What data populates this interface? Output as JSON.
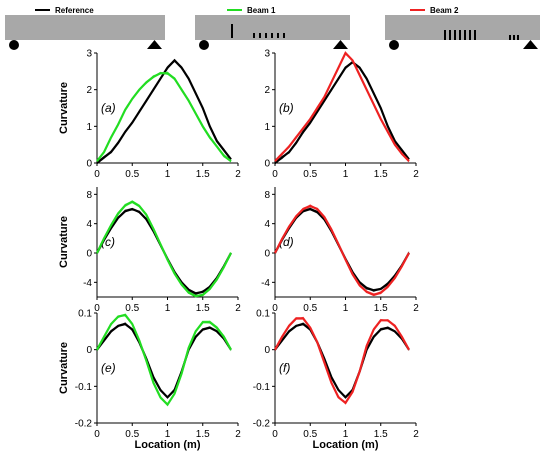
{
  "chart_data": [
    {
      "type": "line",
      "panel_label": "(a)",
      "ylabel": "Curvature",
      "xlabel": "",
      "xlim": [
        0,
        2
      ],
      "ylim": [
        0,
        3
      ],
      "xticks": [
        "0",
        "0.5",
        "1",
        "1.5",
        "2"
      ],
      "yticks": [
        "0",
        "1",
        "2",
        "3"
      ],
      "x": [
        0,
        0.1,
        0.2,
        0.3,
        0.4,
        0.5,
        0.6,
        0.7,
        0.8,
        0.9,
        1.0,
        1.1,
        1.2,
        1.3,
        1.4,
        1.5,
        1.6,
        1.7,
        1.8,
        1.9
      ],
      "series": [
        {
          "name": "Reference",
          "color": "#000000",
          "values": [
            0.0,
            0.15,
            0.3,
            0.55,
            0.85,
            1.1,
            1.4,
            1.7,
            2.0,
            2.3,
            2.6,
            2.8,
            2.6,
            2.3,
            1.9,
            1.5,
            1.0,
            0.6,
            0.35,
            0.1
          ]
        },
        {
          "name": "Beam 1",
          "color": "#22dd22",
          "values": [
            0.05,
            0.3,
            0.7,
            1.05,
            1.45,
            1.75,
            2.0,
            2.2,
            2.35,
            2.45,
            2.45,
            2.3,
            2.0,
            1.7,
            1.35,
            1.0,
            0.7,
            0.45,
            0.2,
            0.05
          ]
        }
      ]
    },
    {
      "type": "line",
      "panel_label": "(b)",
      "ylabel": "",
      "xlabel": "",
      "xlim": [
        0,
        2
      ],
      "ylim": [
        0,
        3
      ],
      "xticks": [
        "0",
        "0.5",
        "1",
        "1.5",
        "2"
      ],
      "yticks": [
        "0",
        "1",
        "2",
        "3"
      ],
      "x": [
        0,
        0.1,
        0.2,
        0.3,
        0.4,
        0.5,
        0.6,
        0.7,
        0.8,
        0.9,
        1.0,
        1.1,
        1.2,
        1.3,
        1.4,
        1.5,
        1.6,
        1.7,
        1.8,
        1.9
      ],
      "series": [
        {
          "name": "Reference",
          "color": "#000000",
          "values": [
            0.0,
            0.15,
            0.3,
            0.55,
            0.85,
            1.1,
            1.4,
            1.7,
            2.0,
            2.3,
            2.6,
            2.75,
            2.6,
            2.3,
            1.9,
            1.5,
            1.0,
            0.6,
            0.35,
            0.1
          ]
        },
        {
          "name": "Beam 2",
          "color": "#ee2222",
          "values": [
            0.05,
            0.25,
            0.45,
            0.7,
            0.95,
            1.2,
            1.5,
            1.8,
            2.2,
            2.6,
            3.0,
            2.8,
            2.4,
            2.0,
            1.6,
            1.2,
            0.85,
            0.5,
            0.25,
            0.05
          ]
        }
      ]
    },
    {
      "type": "line",
      "panel_label": "(c)",
      "ylabel": "Curvature",
      "xlabel": "",
      "xlim": [
        0,
        2
      ],
      "ylim": [
        -6,
        9
      ],
      "xticks": [
        "0",
        "0.5",
        "1",
        "1.5",
        "2"
      ],
      "yticks": [
        "-4",
        "0",
        "4",
        "8"
      ],
      "x": [
        0,
        0.1,
        0.2,
        0.3,
        0.4,
        0.5,
        0.6,
        0.7,
        0.8,
        0.9,
        1.0,
        1.1,
        1.2,
        1.3,
        1.4,
        1.5,
        1.6,
        1.7,
        1.8,
        1.9
      ],
      "series": [
        {
          "name": "Reference",
          "color": "#000000",
          "values": [
            0.0,
            1.8,
            3.4,
            4.8,
            5.7,
            6.0,
            5.6,
            4.6,
            3.0,
            1.1,
            -0.8,
            -2.6,
            -4.0,
            -5.0,
            -5.5,
            -5.3,
            -4.6,
            -3.4,
            -1.8,
            0.0
          ]
        },
        {
          "name": "Beam 1",
          "color": "#22dd22",
          "values": [
            0.0,
            2.0,
            3.8,
            5.4,
            6.5,
            7.0,
            6.4,
            5.2,
            3.3,
            1.2,
            -0.9,
            -2.8,
            -4.3,
            -5.4,
            -5.9,
            -5.7,
            -4.9,
            -3.6,
            -1.9,
            0.0
          ]
        }
      ]
    },
    {
      "type": "line",
      "panel_label": "(d)",
      "ylabel": "",
      "xlabel": "",
      "xlim": [
        0,
        2
      ],
      "ylim": [
        -6,
        9
      ],
      "xticks": [
        "0",
        "0.5",
        "1",
        "1.5",
        "2"
      ],
      "yticks": [
        "-4",
        "0",
        "4",
        "8"
      ],
      "x": [
        0,
        0.1,
        0.2,
        0.3,
        0.4,
        0.5,
        0.6,
        0.7,
        0.8,
        0.9,
        1.0,
        1.1,
        1.2,
        1.3,
        1.4,
        1.5,
        1.6,
        1.7,
        1.8,
        1.9
      ],
      "series": [
        {
          "name": "Reference",
          "color": "#000000",
          "values": [
            0.0,
            1.8,
            3.4,
            4.8,
            5.7,
            6.0,
            5.6,
            4.6,
            3.0,
            1.1,
            -0.8,
            -2.6,
            -4.0,
            -4.8,
            -5.1,
            -4.9,
            -4.2,
            -3.1,
            -1.7,
            0.0
          ]
        },
        {
          "name": "Beam 2",
          "color": "#ee2222",
          "values": [
            0.0,
            1.9,
            3.6,
            5.0,
            6.0,
            6.4,
            6.0,
            4.9,
            3.2,
            1.2,
            -0.9,
            -2.9,
            -4.4,
            -5.3,
            -5.7,
            -5.4,
            -4.6,
            -3.4,
            -1.8,
            0.0
          ]
        }
      ]
    },
    {
      "type": "line",
      "panel_label": "(e)",
      "ylabel": "Curvature",
      "xlabel": "Location (m)",
      "xlim": [
        0,
        2
      ],
      "ylim": [
        -0.2,
        0.1
      ],
      "xticks": [
        "0",
        "0.5",
        "1",
        "1.5",
        "2"
      ],
      "yticks": [
        "-0.2",
        "-0.1",
        "0",
        "0.1"
      ],
      "x": [
        0,
        0.1,
        0.2,
        0.3,
        0.4,
        0.5,
        0.6,
        0.7,
        0.8,
        0.9,
        1.0,
        1.1,
        1.2,
        1.3,
        1.4,
        1.5,
        1.6,
        1.7,
        1.8,
        1.9
      ],
      "series": [
        {
          "name": "Reference",
          "color": "#000000",
          "values": [
            0.0,
            0.025,
            0.05,
            0.065,
            0.07,
            0.055,
            0.02,
            -0.025,
            -0.075,
            -0.11,
            -0.13,
            -0.11,
            -0.06,
            0.0,
            0.035,
            0.055,
            0.06,
            0.05,
            0.03,
            0.0
          ]
        },
        {
          "name": "Beam 1",
          "color": "#22dd22",
          "values": [
            0.0,
            0.035,
            0.07,
            0.09,
            0.095,
            0.07,
            0.025,
            -0.03,
            -0.09,
            -0.13,
            -0.15,
            -0.12,
            -0.065,
            0.005,
            0.05,
            0.075,
            0.075,
            0.06,
            0.035,
            0.0
          ]
        }
      ]
    },
    {
      "type": "line",
      "panel_label": "(f)",
      "ylabel": "",
      "xlabel": "Location (m)",
      "xlim": [
        0,
        2
      ],
      "ylim": [
        -0.2,
        0.1
      ],
      "xticks": [
        "0",
        "0.5",
        "1",
        "1.5",
        "2"
      ],
      "yticks": [
        "-0.2",
        "-0.1",
        "0",
        "0.1"
      ],
      "x": [
        0,
        0.1,
        0.2,
        0.3,
        0.4,
        0.5,
        0.6,
        0.7,
        0.8,
        0.9,
        1.0,
        1.1,
        1.2,
        1.3,
        1.4,
        1.5,
        1.6,
        1.7,
        1.8,
        1.9
      ],
      "series": [
        {
          "name": "Reference",
          "color": "#000000",
          "values": [
            0.0,
            0.025,
            0.05,
            0.065,
            0.07,
            0.055,
            0.02,
            -0.025,
            -0.075,
            -0.11,
            -0.13,
            -0.11,
            -0.06,
            0.0,
            0.035,
            0.055,
            0.06,
            0.05,
            0.03,
            0.0
          ]
        },
        {
          "name": "Beam 2",
          "color": "#ee2222",
          "values": [
            0.0,
            0.035,
            0.065,
            0.085,
            0.085,
            0.06,
            0.02,
            -0.035,
            -0.09,
            -0.13,
            -0.145,
            -0.115,
            -0.06,
            0.01,
            0.055,
            0.08,
            0.08,
            0.065,
            0.035,
            0.0
          ]
        }
      ]
    }
  ],
  "legend": [
    {
      "label": "Reference",
      "color": "#000000"
    },
    {
      "label": "Beam 1",
      "color": "#22dd22"
    },
    {
      "label": "Beam 2",
      "color": "#ee2222"
    }
  ],
  "beam_colors": {
    "beam": "#a8a8a8",
    "support": "#000000",
    "damage": "#000000"
  }
}
